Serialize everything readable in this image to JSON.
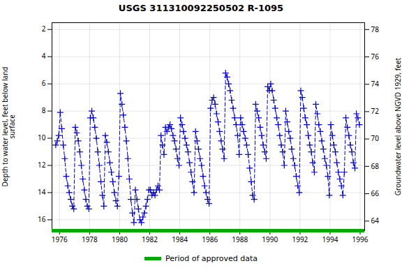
{
  "chart_data": {
    "type": "line",
    "title": "USGS 311310092250502 R-1095",
    "ylabel": "Depth to water level, feet below land\nsurface",
    "y2label": "Groundwater level above NGVD 1929, feet",
    "color": "#0000CC",
    "line_style": "dashed",
    "marker": "plus",
    "xlim": [
      1975.5,
      1996.3
    ],
    "xticks": [
      1976,
      1978,
      1980,
      1982,
      1984,
      1986,
      1988,
      1990,
      1992,
      1994,
      1996
    ],
    "ylim": [
      16.8,
      1.5
    ],
    "yticks": [
      2,
      4,
      6,
      8,
      10,
      12,
      14,
      16
    ],
    "y2lim": [
      63.3,
      78.5
    ],
    "y2ticks": [
      64,
      66,
      68,
      70,
      72,
      74,
      76,
      78
    ],
    "grid": true,
    "legend": "bottom",
    "approved_period": {
      "label": "Period of approved data",
      "color": "#00AA00",
      "x": [
        1975.5,
        1996.3
      ]
    },
    "x": [
      1975.75,
      1975.85,
      1975.95,
      1976.05,
      1976.15,
      1976.25,
      1976.35,
      1976.45,
      1976.55,
      1976.65,
      1976.75,
      1976.85,
      1976.95,
      1977.05,
      1977.15,
      1977.25,
      1977.35,
      1977.45,
      1977.55,
      1977.65,
      1977.75,
      1977.85,
      1977.95,
      1978.05,
      1978.15,
      1978.25,
      1978.35,
      1978.45,
      1978.55,
      1978.65,
      1978.75,
      1978.85,
      1978.95,
      1979.05,
      1979.15,
      1979.25,
      1979.35,
      1979.45,
      1979.55,
      1979.65,
      1979.75,
      1979.85,
      1979.95,
      1980.05,
      1980.15,
      1980.25,
      1980.35,
      1980.45,
      1980.55,
      1980.65,
      1980.75,
      1980.85,
      1980.95,
      1981.05,
      1981.15,
      1981.25,
      1981.35,
      1981.45,
      1981.55,
      1981.65,
      1981.75,
      1981.85,
      1981.95,
      1982.05,
      1982.15,
      1982.25,
      1982.35,
      1982.45,
      1982.55,
      1982.65,
      1982.75,
      1982.85,
      1982.95,
      1983.05,
      1983.15,
      1983.25,
      1983.35,
      1983.45,
      1983.55,
      1983.65,
      1983.75,
      1983.85,
      1983.95,
      1984.05,
      1984.15,
      1984.25,
      1984.35,
      1984.45,
      1984.55,
      1984.65,
      1984.75,
      1984.85,
      1984.95,
      1985.05,
      1985.15,
      1985.25,
      1985.35,
      1985.45,
      1985.55,
      1985.65,
      1985.75,
      1985.85,
      1985.95,
      1986.05,
      1986.15,
      1986.25,
      1986.35,
      1986.45,
      1986.55,
      1986.65,
      1986.75,
      1986.85,
      1986.95,
      1987.05,
      1987.15,
      1987.25,
      1987.35,
      1987.45,
      1987.55,
      1987.65,
      1987.75,
      1987.85,
      1987.95,
      1988.05,
      1988.15,
      1988.25,
      1988.35,
      1988.45,
      1988.55,
      1988.65,
      1988.75,
      1988.85,
      1988.95,
      1989.05,
      1989.15,
      1989.25,
      1989.35,
      1989.45,
      1989.55,
      1989.65,
      1989.75,
      1989.85,
      1989.95,
      1990.05,
      1990.15,
      1990.25,
      1990.35,
      1990.45,
      1990.55,
      1990.65,
      1990.75,
      1990.85,
      1990.95,
      1991.05,
      1991.15,
      1991.25,
      1991.35,
      1991.45,
      1991.55,
      1991.65,
      1991.75,
      1991.85,
      1991.95,
      1992.05,
      1992.15,
      1992.25,
      1992.35,
      1992.45,
      1992.55,
      1992.65,
      1992.75,
      1992.85,
      1992.95,
      1993.05,
      1993.15,
      1993.25,
      1993.35,
      1993.45,
      1993.55,
      1993.65,
      1993.75,
      1993.85,
      1993.95,
      1994.05,
      1994.15,
      1994.25,
      1994.35,
      1994.45,
      1994.55,
      1994.65,
      1994.75,
      1994.85,
      1994.95,
      1995.05,
      1995.15,
      1995.25,
      1995.35,
      1995.45,
      1995.55,
      1995.65,
      1995.75,
      1995.85,
      1995.95
    ],
    "values": [
      10.5,
      10.2,
      9.8,
      8.1,
      9.3,
      10.5,
      11.5,
      12.8,
      13.5,
      14.0,
      14.5,
      15.0,
      15.2,
      9.2,
      9.6,
      10.2,
      11.0,
      12.0,
      13.0,
      13.8,
      14.5,
      15.0,
      15.2,
      8.5,
      8.0,
      8.5,
      9.2,
      10.0,
      11.0,
      12.0,
      13.2,
      14.2,
      15.0,
      9.8,
      10.3,
      11.0,
      11.8,
      12.5,
      13.2,
      14.0,
      14.6,
      15.0,
      12.8,
      6.7,
      7.5,
      8.3,
      9.2,
      10.2,
      11.5,
      13.0,
      14.5,
      15.5,
      16.2,
      13.8,
      14.5,
      15.2,
      16.0,
      16.2,
      15.8,
      15.5,
      15.0,
      14.5,
      13.8,
      13.8,
      14.2,
      14.0,
      14.2,
      13.8,
      13.5,
      13.8,
      9.8,
      10.5,
      11.2,
      9.2,
      9.5,
      9.2,
      9.0,
      9.3,
      9.8,
      10.2,
      10.8,
      11.5,
      12.0,
      8.5,
      9.0,
      9.5,
      10.0,
      10.5,
      11.0,
      11.8,
      12.5,
      13.2,
      14.0,
      9.5,
      10.2,
      10.8,
      11.5,
      12.0,
      12.8,
      13.5,
      14.0,
      14.5,
      14.8,
      7.8,
      7.2,
      7.0,
      7.5,
      8.2,
      8.8,
      9.5,
      10.2,
      10.8,
      11.5,
      5.2,
      5.5,
      6.0,
      6.5,
      7.2,
      7.8,
      8.5,
      9.0,
      9.8,
      11.2,
      8.5,
      9.0,
      9.5,
      10.0,
      10.5,
      11.2,
      12.2,
      13.2,
      14.2,
      14.5,
      7.5,
      8.0,
      8.5,
      9.2,
      9.8,
      10.5,
      11.0,
      11.5,
      6.2,
      6.5,
      6.0,
      6.5,
      7.2,
      7.8,
      8.5,
      9.0,
      9.8,
      10.5,
      11.0,
      12.0,
      8.0,
      8.8,
      9.5,
      10.0,
      10.8,
      11.5,
      12.0,
      12.8,
      13.5,
      14.0,
      6.5,
      7.0,
      7.8,
      8.5,
      9.0,
      9.8,
      10.5,
      11.0,
      11.8,
      12.5,
      7.5,
      8.2,
      9.0,
      9.5,
      10.2,
      10.8,
      11.5,
      12.0,
      12.8,
      14.2,
      9.0,
      9.8,
      10.5,
      11.0,
      11.8,
      12.5,
      13.0,
      13.5,
      14.2,
      12.5,
      8.5,
      9.2,
      9.8,
      10.5,
      11.0,
      11.8,
      12.2,
      8.2,
      8.5,
      9.0
    ]
  }
}
